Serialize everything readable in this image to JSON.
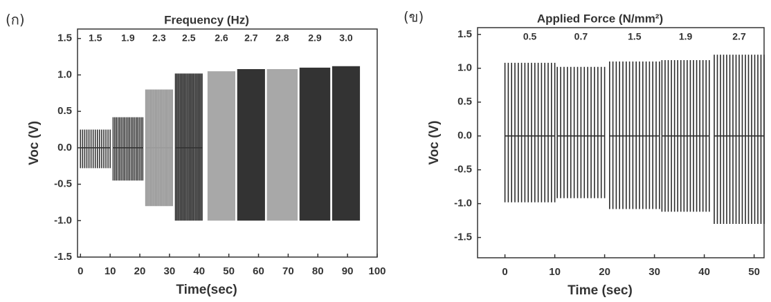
{
  "chart_data": [
    {
      "type": "spikes",
      "label": "(ก)",
      "title": "Frequency (Hz)",
      "x_label": "Time(sec)",
      "y_label": "Voc (V)",
      "xlim": [
        -1,
        100
      ],
      "xticks": [
        0,
        10,
        20,
        30,
        40,
        50,
        60,
        70,
        80,
        90,
        100
      ],
      "ylim": [
        -1.5,
        1.63
      ],
      "yticks": [
        -1.5,
        {
          "value": -1,
          "label": "-1.0"
        },
        -0.5,
        {
          "value": 0,
          "label": "0.0"
        },
        0.5,
        {
          "value": 1,
          "label": "1.0"
        },
        1.5
      ],
      "groups": [
        {
          "label": "1.5",
          "start": 0,
          "end": 10,
          "high": 0.25,
          "low": -0.28,
          "count": 15,
          "color": "#333333"
        },
        {
          "label": "1.9",
          "start": 11,
          "end": 21,
          "high": 0.42,
          "low": -0.45,
          "count": 19,
          "color": "#333333"
        },
        {
          "label": "2.3",
          "start": 22,
          "end": 31,
          "high": 0.8,
          "low": -0.8,
          "count": 23,
          "color": "#9a9a9a"
        },
        {
          "label": "2.5",
          "start": 32,
          "end": 41,
          "high": 1.02,
          "low": -1.0,
          "count": 22,
          "color": "#333333"
        },
        {
          "label": "2.6",
          "start": 43,
          "end": 52,
          "high": 1.05,
          "low": -1.0,
          "count": 25,
          "color": "#a8a8a8"
        },
        {
          "label": "2.7",
          "start": 53,
          "end": 62,
          "high": 1.08,
          "low": -1.0,
          "count": 27,
          "color": "#333333"
        },
        {
          "label": "2.8",
          "start": 63,
          "end": 73,
          "high": 1.08,
          "low": -1.0,
          "count": 28,
          "color": "#a8a8a8"
        },
        {
          "label": "2.9",
          "start": 74,
          "end": 84,
          "high": 1.1,
          "low": -1.0,
          "count": 29,
          "color": "#333333"
        },
        {
          "label": "3.0",
          "start": 85,
          "end": 94,
          "high": 1.12,
          "low": -1.0,
          "count": 30,
          "color": "#333333"
        }
      ]
    },
    {
      "type": "spikes",
      "label": "(ข)",
      "title": "Applied Force (N/mm²)",
      "x_label": "Time (sec)",
      "y_label": "Voc (V)",
      "xlim": [
        -5.5,
        52
      ],
      "xticks": [
        0,
        10,
        20,
        30,
        40,
        50
      ],
      "ylim": [
        -1.8,
        1.6
      ],
      "yticks": [
        -1.5,
        {
          "value": -1,
          "label": "-1.0"
        },
        -0.5,
        {
          "value": 0,
          "label": "0.0"
        },
        0.5,
        {
          "value": 1,
          "label": "1.0"
        },
        1.5
      ],
      "groups": [
        {
          "label": "0.5",
          "start": 0,
          "end": 10,
          "high": 1.08,
          "low": -0.98,
          "count": 16,
          "color": "#2a2a2a"
        },
        {
          "label": "0.7",
          "start": 10.5,
          "end": 20,
          "high": 1.02,
          "low": -0.92,
          "count": 15,
          "color": "#2a2a2a"
        },
        {
          "label": "1.5",
          "start": 21,
          "end": 31,
          "high": 1.1,
          "low": -1.08,
          "count": 16,
          "color": "#2a2a2a"
        },
        {
          "label": "1.9",
          "start": 31.5,
          "end": 41,
          "high": 1.12,
          "low": -1.12,
          "count": 16,
          "color": "#2a2a2a"
        },
        {
          "label": "2.7",
          "start": 42,
          "end": 52,
          "high": 1.2,
          "low": -1.3,
          "count": 17,
          "color": "#2a2a2a"
        }
      ]
    }
  ]
}
